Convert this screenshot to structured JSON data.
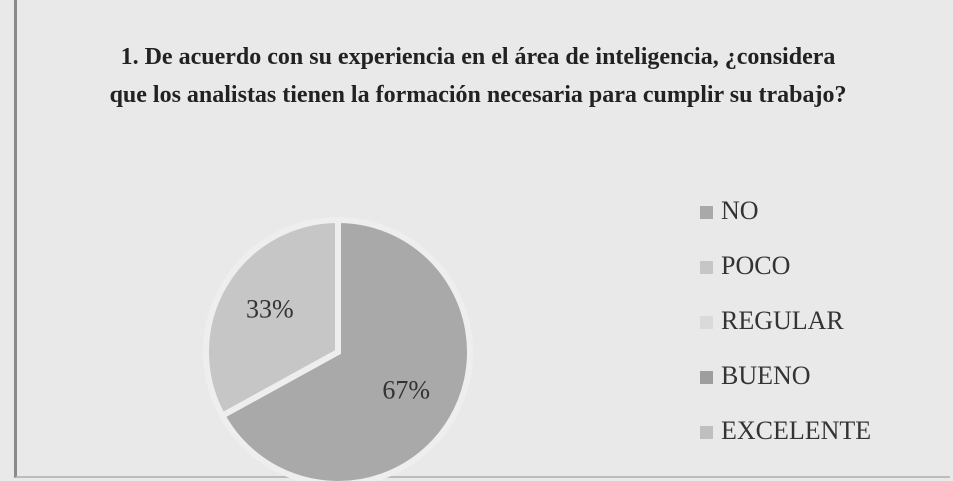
{
  "chart_data": {
    "type": "pie",
    "title": "1. De acuerdo con su experiencia en el área de inteligencia, ¿considera que los analistas tienen la formación necesaria para cumplir su trabajo?",
    "categories": [
      "NO",
      "POCO",
      "REGULAR",
      "BUENO",
      "EXCELENTE"
    ],
    "values": [
      67,
      33,
      0,
      0,
      0
    ],
    "value_labels": [
      "67%",
      "33%",
      null,
      null,
      null
    ],
    "colors": [
      "#a9a9a9",
      "#c6c6c6",
      "#dadada",
      "#9e9e9e",
      "#bfbfbf"
    ],
    "legend": "right"
  }
}
